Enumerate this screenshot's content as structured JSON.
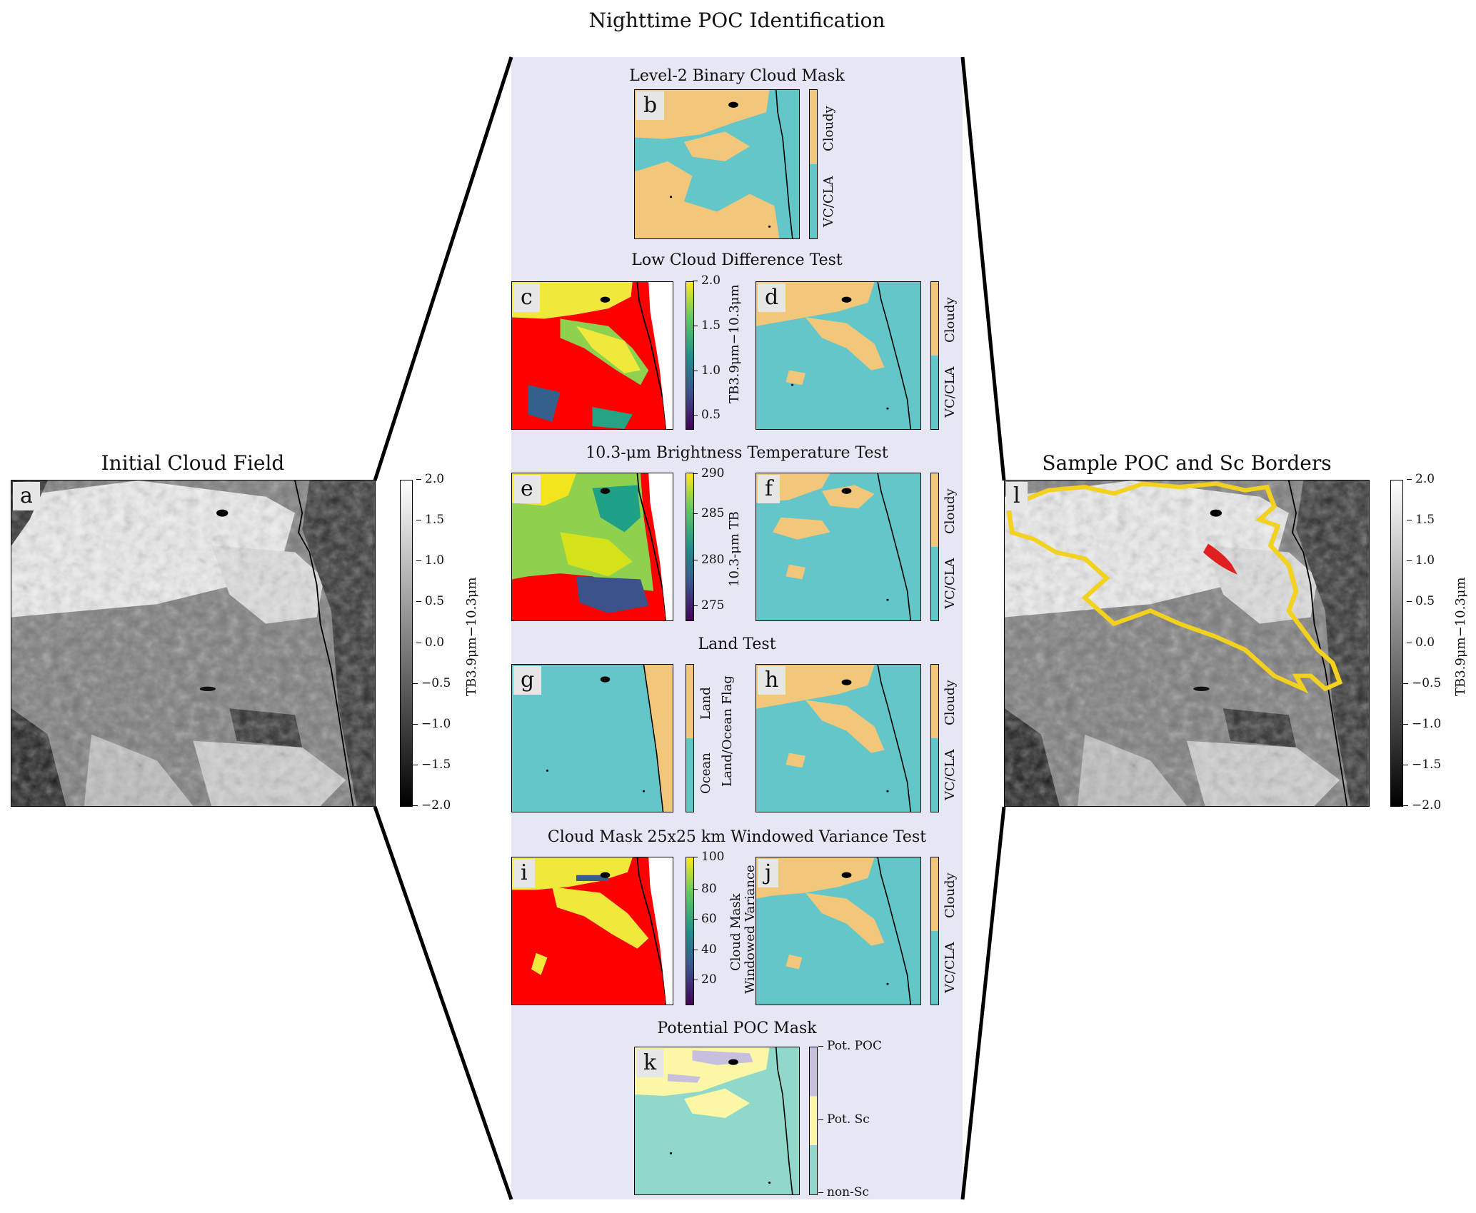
{
  "figure": {
    "main_title": "Nighttime POC Identification",
    "left_title": "Initial Cloud Field",
    "right_title": "Sample POC and Sc Borders"
  },
  "sections": {
    "s1": "Level-2 Binary Cloud Mask",
    "s2": "Low Cloud Difference Test",
    "s3": "10.3-μm Brightness Temperature Test",
    "s4": "Land Test",
    "s5": "Cloud Mask 25x25 km Windowed Variance Test",
    "s6": "Potential POC Mask"
  },
  "panel_labels": {
    "a": "a",
    "b": "b",
    "c": "c",
    "d": "d",
    "e": "e",
    "f": "f",
    "g": "g",
    "h": "h",
    "i": "i",
    "j": "j",
    "k": "k",
    "l": "l"
  },
  "colorbars": {
    "gray": {
      "label": "TB3.9μm−10.3μm",
      "ticks": [
        "2.0",
        "1.5",
        "1.0",
        "0.5",
        "0.0",
        "−0.5",
        "−1.0",
        "−1.5",
        "−2.0"
      ]
    },
    "diff": {
      "label": "TB3.9μm−10.3μm",
      "ticks": [
        "2.0",
        "1.5",
        "1.0",
        "0.5"
      ]
    },
    "temp": {
      "label": "10.3-μm TB",
      "ticks": [
        "290",
        "285",
        "280",
        "275"
      ]
    },
    "var": {
      "label_line1": "Cloud Mask",
      "label_line2": "Windowed Variance",
      "ticks": [
        "100",
        "80",
        "60",
        "40",
        "20"
      ]
    },
    "binary": {
      "cloudy": "Cloudy",
      "clear": "VC/CLA"
    },
    "land": {
      "land": "Land",
      "ocean": "Ocean",
      "label": "Land/Ocean Flag"
    },
    "poc": {
      "pot_poc": "Pot. POC",
      "pot_sc": "Pot. Sc",
      "non_sc": "non-Sc"
    }
  },
  "colors": {
    "background_band": "#e6e6f5",
    "cloudy": "#f2c77a",
    "clear": "#63c6c9",
    "flag_red": "#ff0000",
    "sc_border": "#f2d21e",
    "poc_border": "#e02020",
    "pot_poc": "#c7bfdd",
    "pot_sc": "#fbf7a6",
    "non_sc": "#8fd8ca"
  }
}
